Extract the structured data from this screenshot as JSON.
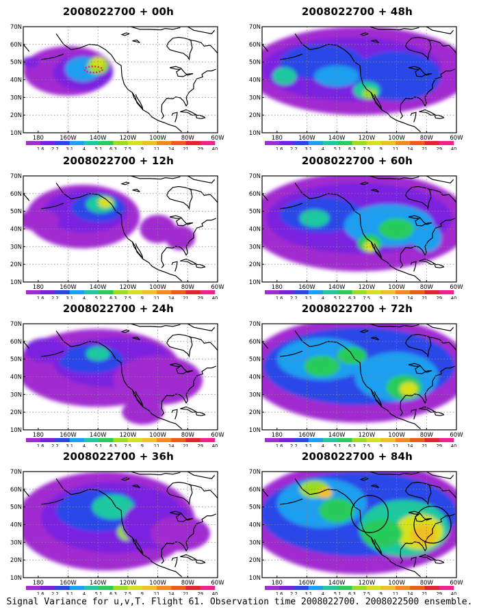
{
  "caption": "Signal Variance for u,v,T. Flight 61. Observation time 2008022700. 2008022500 ensemble.",
  "colors": [
    "#ffffff",
    "#a12cd0",
    "#7a20e0",
    "#2a46e8",
    "#1e9ff0",
    "#1fc9a0",
    "#28cc5a",
    "#9bdc1e",
    "#d6e21c",
    "#f0c020",
    "#f08a22",
    "#ee5a22",
    "#e8222e",
    "#f0208c"
  ],
  "chart_data": [
    {
      "type": "heatmap",
      "title": "2008022700 + 00h",
      "lead_hours": 0,
      "xlabels": [
        "180",
        "160W",
        "140W",
        "120W",
        "100W",
        "80W",
        "60W"
      ],
      "ylabels": [
        "10N",
        "20N",
        "30N",
        "40N",
        "50N",
        "60N",
        "70N"
      ],
      "xlim": [
        -190,
        -60
      ],
      "ylim": [
        10,
        70
      ],
      "legend_levels": [
        "1.6",
        "2.2",
        "3.1",
        "4",
        "5.1",
        "6.3",
        "7.5",
        "9",
        "11",
        "14",
        "21",
        "29",
        "40"
      ],
      "grid": true
    },
    {
      "type": "heatmap",
      "title": "2008022700 + 12h",
      "lead_hours": 12,
      "xlabels": [
        "180",
        "160W",
        "140W",
        "120W",
        "100W",
        "80W",
        "60W"
      ],
      "ylabels": [
        "10N",
        "20N",
        "30N",
        "40N",
        "50N",
        "60N",
        "70N"
      ],
      "xlim": [
        -190,
        -60
      ],
      "ylim": [
        10,
        70
      ],
      "legend_levels": [
        "1.6",
        "2.2",
        "3.1",
        "4",
        "5.1",
        "6.3",
        "7.5",
        "9",
        "11",
        "14",
        "21",
        "29",
        "40"
      ],
      "grid": true
    },
    {
      "type": "heatmap",
      "title": "2008022700 + 24h",
      "lead_hours": 24,
      "xlabels": [
        "180",
        "160W",
        "140W",
        "120W",
        "100W",
        "80W",
        "60W"
      ],
      "ylabels": [
        "10N",
        "20N",
        "30N",
        "40N",
        "50N",
        "60N",
        "70N"
      ],
      "xlim": [
        -190,
        -60
      ],
      "ylim": [
        10,
        70
      ],
      "legend_levels": [
        "1.6",
        "2.2",
        "3.1",
        "4",
        "5.1",
        "6.3",
        "7.5",
        "9",
        "11",
        "14",
        "21",
        "29",
        "40"
      ],
      "grid": true
    },
    {
      "type": "heatmap",
      "title": "2008022700 + 36h",
      "lead_hours": 36,
      "xlabels": [
        "180",
        "160W",
        "140W",
        "120W",
        "100W",
        "80W",
        "60W"
      ],
      "ylabels": [
        "10N",
        "20N",
        "30N",
        "40N",
        "50N",
        "60N",
        "70N"
      ],
      "xlim": [
        -190,
        -60
      ],
      "ylim": [
        10,
        70
      ],
      "legend_levels": [
        "1.6",
        "2.2",
        "3.1",
        "4",
        "5.1",
        "6.3",
        "7.5",
        "9",
        "11",
        "14",
        "21",
        "29",
        "40"
      ],
      "grid": true
    },
    {
      "type": "heatmap",
      "title": "2008022700 + 48h",
      "lead_hours": 48,
      "xlabels": [
        "180",
        "160W",
        "140W",
        "120W",
        "100W",
        "80W",
        "60W"
      ],
      "ylabels": [
        "10N",
        "20N",
        "30N",
        "40N",
        "50N",
        "60N",
        "70N"
      ],
      "xlim": [
        -190,
        -60
      ],
      "ylim": [
        10,
        70
      ],
      "legend_levels": [
        "1.6",
        "2.2",
        "3.1",
        "4",
        "5.1",
        "6.3",
        "7.5",
        "9",
        "11",
        "14",
        "21",
        "29",
        "40"
      ],
      "grid": true
    },
    {
      "type": "heatmap",
      "title": "2008022700 + 60h",
      "lead_hours": 60,
      "xlabels": [
        "180",
        "160W",
        "140W",
        "120W",
        "100W",
        "80W",
        "60W"
      ],
      "ylabels": [
        "10N",
        "20N",
        "30N",
        "40N",
        "50N",
        "60N",
        "70N"
      ],
      "xlim": [
        -190,
        -60
      ],
      "ylim": [
        10,
        70
      ],
      "legend_levels": [
        "1.6",
        "2.2",
        "3.1",
        "4",
        "5.1",
        "6.3",
        "7.5",
        "9",
        "11",
        "14",
        "21",
        "29",
        "40"
      ],
      "grid": true
    },
    {
      "type": "heatmap",
      "title": "2008022700 + 72h",
      "lead_hours": 72,
      "xlabels": [
        "180",
        "160W",
        "140W",
        "120W",
        "100W",
        "80W",
        "60W"
      ],
      "ylabels": [
        "10N",
        "20N",
        "30N",
        "40N",
        "50N",
        "60N",
        "70N"
      ],
      "xlim": [
        -190,
        -60
      ],
      "ylim": [
        10,
        70
      ],
      "legend_levels": [
        "1.6",
        "2.2",
        "3.1",
        "4",
        "5.1",
        "6.3",
        "7.5",
        "9",
        "11",
        "14",
        "21",
        "29",
        "40"
      ],
      "grid": true
    },
    {
      "type": "heatmap",
      "title": "2008022700 + 84h",
      "lead_hours": 84,
      "xlabels": [
        "180",
        "160W",
        "140W",
        "120W",
        "100W",
        "80W",
        "60W"
      ],
      "ylabels": [
        "10N",
        "20N",
        "30N",
        "40N",
        "50N",
        "60N",
        "70N"
      ],
      "xlim": [
        -190,
        -60
      ],
      "ylim": [
        10,
        70
      ],
      "legend_levels": [
        "1.6",
        "2.2",
        "3.1",
        "4",
        "5.1",
        "6.3",
        "7.5",
        "9",
        "11",
        "14",
        "21",
        "29",
        "40"
      ],
      "grid": true
    }
  ]
}
